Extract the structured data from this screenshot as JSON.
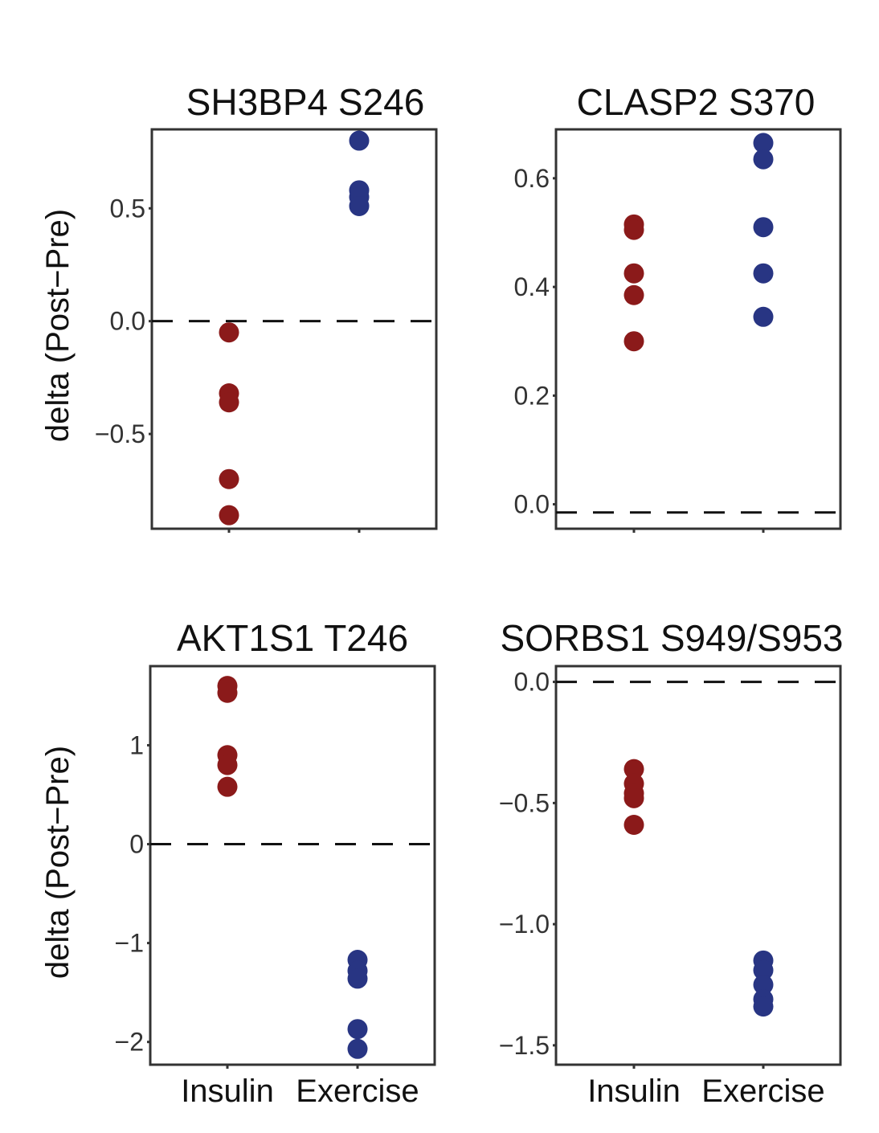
{
  "figure": {
    "ylabel_top": "delta (Post−Pre)",
    "ylabel_bottom": "delta (Post−Pre)"
  },
  "colors": {
    "Insulin": "#8b1a1a",
    "Exercise": "#283583",
    "axis": "#333333"
  },
  "chart_data": [
    {
      "type": "scatter",
      "title": "SH3BP4 S246",
      "categories": [
        "Insulin",
        "Exercise"
      ],
      "show_category_labels": false,
      "ylim": [
        -0.92,
        0.85
      ],
      "yticks": [
        -0.5,
        0.0,
        0.5
      ],
      "ytick_labels": [
        "−0.5",
        "0.0",
        "0.5"
      ],
      "reference_line": 0,
      "series": [
        {
          "name": "Insulin",
          "values": [
            -0.05,
            -0.32,
            -0.36,
            -0.7,
            -0.86
          ]
        },
        {
          "name": "Exercise",
          "values": [
            0.8,
            0.58,
            0.55,
            0.51
          ]
        }
      ]
    },
    {
      "type": "scatter",
      "title": "CLASP2 S370",
      "categories": [
        "Insulin",
        "Exercise"
      ],
      "show_category_labels": false,
      "ylim": [
        -0.045,
        0.69
      ],
      "yticks": [
        0.0,
        0.2,
        0.4,
        0.6
      ],
      "ytick_labels": [
        "0.0",
        "0.2",
        "0.4",
        "0.6"
      ],
      "reference_line": -0.015,
      "series": [
        {
          "name": "Insulin",
          "values": [
            0.515,
            0.505,
            0.425,
            0.385,
            0.3
          ]
        },
        {
          "name": "Exercise",
          "values": [
            0.665,
            0.635,
            0.51,
            0.425,
            0.345
          ]
        }
      ]
    },
    {
      "type": "scatter",
      "title": "AKT1S1 T246",
      "categories": [
        "Insulin",
        "Exercise"
      ],
      "show_category_labels": true,
      "ylim": [
        -2.23,
        1.8
      ],
      "yticks": [
        -2,
        -1,
        0,
        1
      ],
      "ytick_labels": [
        "−2",
        "−1",
        "0",
        "1"
      ],
      "reference_line": 0,
      "series": [
        {
          "name": "Insulin",
          "values": [
            1.6,
            1.53,
            0.9,
            0.8,
            0.58
          ]
        },
        {
          "name": "Exercise",
          "values": [
            -1.17,
            -1.28,
            -1.36,
            -1.87,
            -2.07
          ]
        }
      ]
    },
    {
      "type": "scatter",
      "title": "SORBS1 S949/S953",
      "categories": [
        "Insulin",
        "Exercise"
      ],
      "show_category_labels": true,
      "ylim": [
        -1.58,
        0.065
      ],
      "yticks": [
        -1.5,
        -1.0,
        -0.5,
        0.0
      ],
      "ytick_labels": [
        "−1.5",
        "−1.0",
        "−0.5",
        "0.0"
      ],
      "reference_line": 0,
      "series": [
        {
          "name": "Insulin",
          "values": [
            -0.36,
            -0.42,
            -0.46,
            -0.48,
            -0.59
          ]
        },
        {
          "name": "Exercise",
          "values": [
            -1.15,
            -1.19,
            -1.25,
            -1.31,
            -1.34
          ]
        }
      ]
    }
  ]
}
